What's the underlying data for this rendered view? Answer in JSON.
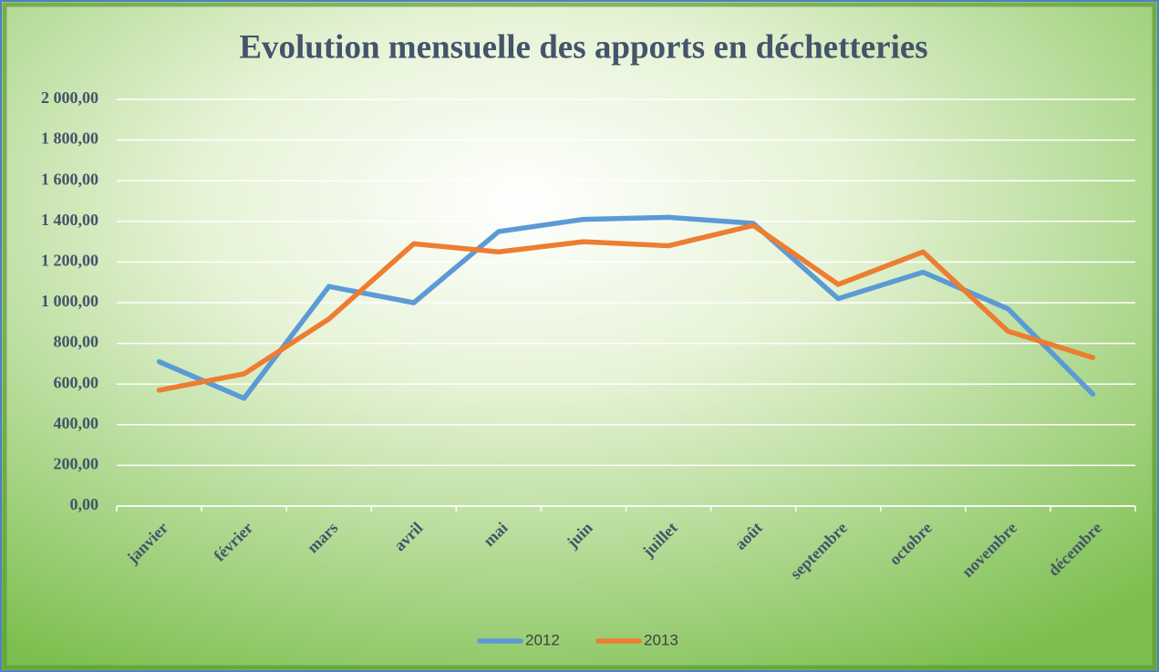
{
  "chart_data": {
    "type": "line",
    "title": "Evolution mensuelle des apports en déchetteries",
    "categories": [
      "janvier",
      "février",
      "mars",
      "avril",
      "mai",
      "juin",
      "juillet",
      "août",
      "septembre",
      "octobre",
      "novembre",
      "décembre"
    ],
    "series": [
      {
        "name": "2012",
        "color": "#5b9bd5",
        "values": [
          710,
          530,
          1080,
          1000,
          1350,
          1410,
          1420,
          1390,
          1020,
          1150,
          970,
          550
        ]
      },
      {
        "name": "2013",
        "color": "#ed7d31",
        "values": [
          570,
          650,
          920,
          1290,
          1250,
          1300,
          1280,
          1380,
          1090,
          1250,
          860,
          730
        ]
      }
    ],
    "ylim": [
      0,
      2000
    ],
    "yticks": [
      {
        "value": 0,
        "label": "0,00"
      },
      {
        "value": 200,
        "label": "200,00"
      },
      {
        "value": 400,
        "label": "400,00"
      },
      {
        "value": 600,
        "label": "600,00"
      },
      {
        "value": 800,
        "label": "800,00"
      },
      {
        "value": 1000,
        "label": "1 000,00"
      },
      {
        "value": 1200,
        "label": "1 200,00"
      },
      {
        "value": 1400,
        "label": "1 400,00"
      },
      {
        "value": 1600,
        "label": "1 600,00"
      },
      {
        "value": 1800,
        "label": "1 800,00"
      },
      {
        "value": 2000,
        "label": "2 000,00"
      }
    ],
    "grid": true,
    "legend": "bottom"
  }
}
